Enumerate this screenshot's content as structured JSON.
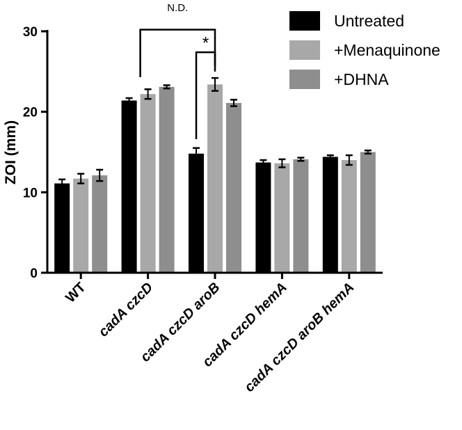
{
  "chart_data": {
    "type": "bar",
    "title": "",
    "xlabel": "",
    "ylabel": "ZOI (mm)",
    "ylim": [
      0,
      30
    ],
    "yticks": [
      0,
      10,
      20,
      30
    ],
    "grid": false,
    "legend_position": "top-right",
    "categories": [
      "WT",
      "cadA czcD",
      "cadA czcD aroB",
      "cadA czcD hemA",
      "cadA czcD aroB hemA"
    ],
    "category_italic": [
      false,
      true,
      true,
      true,
      true
    ],
    "series": [
      {
        "name": "Untreated",
        "color": "#000000",
        "values": [
          11.1,
          21.4,
          14.8,
          13.7,
          14.4
        ],
        "errors": [
          0.5,
          0.3,
          0.7,
          0.3,
          0.2
        ]
      },
      {
        "name": "+Menaquinone",
        "color": "#a8a8a8",
        "values": [
          11.7,
          22.2,
          23.4,
          13.6,
          14.0
        ],
        "errors": [
          0.6,
          0.6,
          0.8,
          0.5,
          0.6
        ]
      },
      {
        "name": "+DHNA",
        "color": "#8e8e8e",
        "values": [
          12.1,
          23.1,
          21.1,
          14.1,
          15.0
        ],
        "errors": [
          0.7,
          0.2,
          0.4,
          0.2,
          0.2
        ]
      }
    ],
    "annotations": [
      {
        "text": "N.D.",
        "from": {
          "category": 1,
          "series": 0
        },
        "to": {
          "category": 2,
          "series": 1
        }
      },
      {
        "text": "*",
        "from": {
          "category": 2,
          "series": 0
        },
        "to": {
          "category": 2,
          "series": 1
        }
      }
    ]
  }
}
